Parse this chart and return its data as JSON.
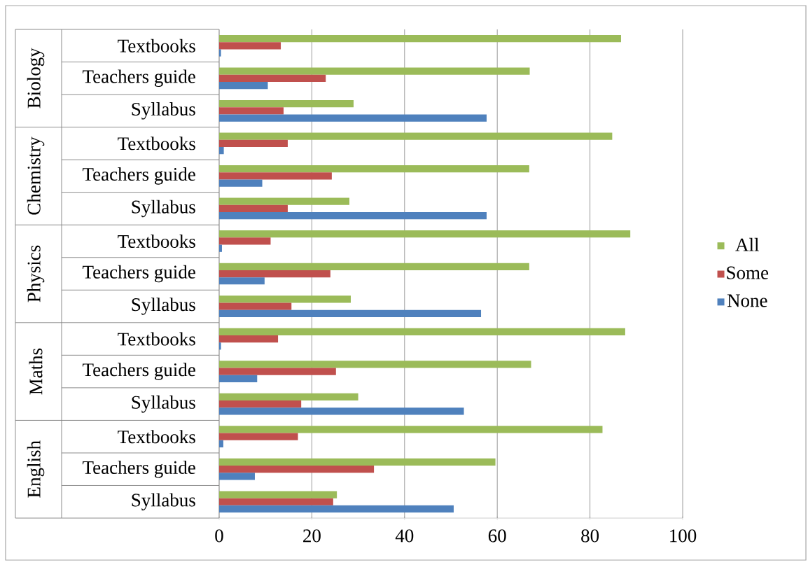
{
  "chart_data": {
    "type": "bar",
    "orientation": "horizontal",
    "categories": [
      "Textbooks",
      "Teachers guide",
      "Syllabus",
      "Textbooks",
      "Teachers guide",
      "Syllabus",
      "Textbooks",
      "Teachers guide",
      "Syllabus",
      "Textbooks",
      "Teachers guide",
      "Syllabus",
      "Textbooks",
      "Teachers guide",
      "Syllabus"
    ],
    "annotations": [
      "Biology",
      "Chemistry",
      "Physics",
      "Maths",
      "English"
    ],
    "series": [
      {
        "name": "All",
        "color": "#9bbb59",
        "values": [
          86.7,
          67.0,
          29.0,
          84.8,
          66.9,
          28.1,
          88.7,
          66.9,
          28.4,
          87.6,
          67.3,
          30.0,
          82.7,
          59.6,
          25.4
        ]
      },
      {
        "name": "Some",
        "color": "#c0504d",
        "values": [
          13.3,
          23.0,
          13.9,
          14.8,
          24.3,
          14.8,
          11.1,
          24.0,
          15.6,
          12.7,
          25.2,
          17.7,
          17.0,
          33.4,
          24.6
        ]
      },
      {
        "name": "None",
        "color": "#4f81bd",
        "values": [
          0.4,
          10.5,
          57.7,
          1.0,
          9.3,
          57.7,
          0.6,
          9.8,
          56.5,
          0.4,
          8.2,
          52.8,
          0.9,
          7.7,
          50.6
        ]
      }
    ],
    "xlim": [
      0,
      100
    ],
    "xticks": [
      0,
      20,
      40,
      60,
      80,
      100
    ],
    "grid": "x",
    "legend": "right"
  }
}
